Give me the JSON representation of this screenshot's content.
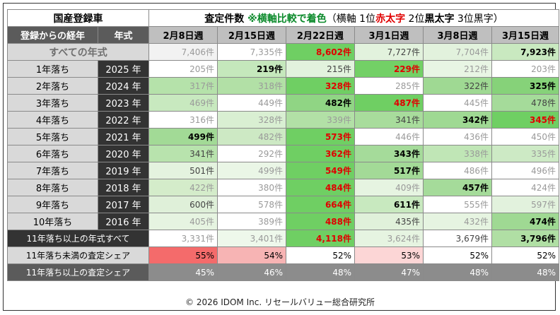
{
  "header": {
    "left_title": "国産登録車",
    "title_main": "査定件数",
    "title_green": "※横軸比較で着色",
    "title_note_a": "（横軸 1位",
    "title_red": "赤太字",
    "title_note_b": " 2位",
    "title_blk": "黒太字",
    "title_note_c": " 3位黒字）"
  },
  "columns": {
    "age_header": "登録からの経年",
    "year_header": "年式",
    "weeks": [
      "2月8日週",
      "2月15日週",
      "2月22日週",
      "3月1日週",
      "3月8日週",
      "3月15日週"
    ]
  },
  "all_row": {
    "label": "すべての年式",
    "cells": [
      {
        "text": "7,406件",
        "style": "gray",
        "bg": "#f2f2f2"
      },
      {
        "text": "7,335件",
        "style": "gray",
        "bg": "#ffffff"
      },
      {
        "text": "8,602件",
        "style": "red",
        "bg": "#6fcf63"
      },
      {
        "text": "7,727件",
        "style": "black",
        "bg": "#e2f2dd"
      },
      {
        "text": "7,704件",
        "style": "gray",
        "bg": "#e2f2dd"
      },
      {
        "text": "7,923件",
        "style": "bold",
        "bg": "#c9e9c0"
      }
    ]
  },
  "rows": [
    {
      "age": "1年落ち",
      "year": "2025 年",
      "cells": [
        {
          "text": "205件",
          "style": "gray",
          "bg": "#ffffff"
        },
        {
          "text": "219件",
          "style": "bold",
          "bg": "#c5e8bc"
        },
        {
          "text": "215件",
          "style": "black",
          "bg": "#e2f2dd"
        },
        {
          "text": "229件",
          "style": "red",
          "bg": "#73d066"
        },
        {
          "text": "212件",
          "style": "gray",
          "bg": "#e8f5e4"
        },
        {
          "text": "203件",
          "style": "gray",
          "bg": "#ffffff"
        }
      ]
    },
    {
      "age": "2年落ち",
      "year": "2024 年",
      "cells": [
        {
          "text": "317件",
          "style": "gray",
          "bg": "#b5e2aa"
        },
        {
          "text": "318件",
          "style": "gray",
          "bg": "#b2e0a6"
        },
        {
          "text": "328件",
          "style": "red",
          "bg": "#6fcf63"
        },
        {
          "text": "285件",
          "style": "gray",
          "bg": "#ffffff"
        },
        {
          "text": "322件",
          "style": "black",
          "bg": "#9fd993"
        },
        {
          "text": "325件",
          "style": "bold",
          "bg": "#86d279"
        }
      ]
    },
    {
      "age": "3年落ち",
      "year": "2023 年",
      "cells": [
        {
          "text": "469件",
          "style": "gray",
          "bg": "#c8e9bf"
        },
        {
          "text": "449件",
          "style": "gray",
          "bg": "#ffffff"
        },
        {
          "text": "482件",
          "style": "bold",
          "bg": "#90d584"
        },
        {
          "text": "487件",
          "style": "red",
          "bg": "#6fcf63"
        },
        {
          "text": "445件",
          "style": "gray",
          "bg": "#ffffff"
        },
        {
          "text": "478件",
          "style": "black",
          "bg": "#a5db9a"
        }
      ]
    },
    {
      "age": "4年落ち",
      "year": "2022 年",
      "cells": [
        {
          "text": "316件",
          "style": "gray",
          "bg": "#ffffff"
        },
        {
          "text": "328件",
          "style": "gray",
          "bg": "#d9efd2"
        },
        {
          "text": "339件",
          "style": "gray",
          "bg": "#b2e0a6"
        },
        {
          "text": "341件",
          "style": "black",
          "bg": "#a8dc9c"
        },
        {
          "text": "342件",
          "style": "bold",
          "bg": "#9fd993"
        },
        {
          "text": "345件",
          "style": "red",
          "bg": "#6fcf63"
        }
      ]
    },
    {
      "age": "5年落ち",
      "year": "2021 年",
      "cells": [
        {
          "text": "499件",
          "style": "bold",
          "bg": "#a2da96"
        },
        {
          "text": "482件",
          "style": "gray",
          "bg": "#cde9c4"
        },
        {
          "text": "573件",
          "style": "red",
          "bg": "#6fcf63"
        },
        {
          "text": "446件",
          "style": "gray",
          "bg": "#ffffff"
        },
        {
          "text": "436件",
          "style": "gray",
          "bg": "#ffffff"
        },
        {
          "text": "450件",
          "style": "gray",
          "bg": "#ffffff"
        }
      ]
    },
    {
      "age": "6年落ち",
      "year": "2020 年",
      "cells": [
        {
          "text": "341件",
          "style": "black",
          "bg": "#b8e3ad"
        },
        {
          "text": "292件",
          "style": "gray",
          "bg": "#ffffff"
        },
        {
          "text": "362件",
          "style": "red",
          "bg": "#6fcf63"
        },
        {
          "text": "343件",
          "style": "bold",
          "bg": "#a5db9a"
        },
        {
          "text": "338件",
          "style": "gray",
          "bg": "#c0e6b6"
        },
        {
          "text": "335件",
          "style": "gray",
          "bg": "#cdeac5"
        }
      ]
    },
    {
      "age": "7年落ち",
      "year": "2019 年",
      "cells": [
        {
          "text": "501件",
          "style": "black",
          "bg": "#e4f3df"
        },
        {
          "text": "499件",
          "style": "gray",
          "bg": "#eaf6e6"
        },
        {
          "text": "549件",
          "style": "red",
          "bg": "#6fcf63"
        },
        {
          "text": "517件",
          "style": "bold",
          "bg": "#a3da97"
        },
        {
          "text": "486件",
          "style": "gray",
          "bg": "#ffffff"
        },
        {
          "text": "496件",
          "style": "gray",
          "bg": "#ffffff"
        }
      ]
    },
    {
      "age": "8年落ち",
      "year": "2018 年",
      "cells": [
        {
          "text": "422件",
          "style": "gray",
          "bg": "#d4ecca"
        },
        {
          "text": "380件",
          "style": "gray",
          "bg": "#ffffff"
        },
        {
          "text": "484件",
          "style": "red",
          "bg": "#6fcf63"
        },
        {
          "text": "409件",
          "style": "gray",
          "bg": "#e6f4e1"
        },
        {
          "text": "457件",
          "style": "bold",
          "bg": "#a5db9a"
        },
        {
          "text": "424件",
          "style": "gray",
          "bg": "#ffffff"
        }
      ]
    },
    {
      "age": "9年落ち",
      "year": "2017 年",
      "cells": [
        {
          "text": "600件",
          "style": "black",
          "bg": "#dff0d9"
        },
        {
          "text": "578件",
          "style": "gray",
          "bg": "#ffffff"
        },
        {
          "text": "664件",
          "style": "red",
          "bg": "#6fcf63"
        },
        {
          "text": "611件",
          "style": "bold",
          "bg": "#c8e9bf"
        },
        {
          "text": "555件",
          "style": "gray",
          "bg": "#ffffff"
        },
        {
          "text": "597件",
          "style": "gray",
          "bg": "#e2f2dd"
        }
      ]
    },
    {
      "age": "10年落ち",
      "year": "2016 年",
      "cells": [
        {
          "text": "405件",
          "style": "gray",
          "bg": "#e6f4e1"
        },
        {
          "text": "389件",
          "style": "gray",
          "bg": "#ffffff"
        },
        {
          "text": "488件",
          "style": "red",
          "bg": "#6fcf63"
        },
        {
          "text": "435件",
          "style": "black",
          "bg": "#e0f1da"
        },
        {
          "text": "432件",
          "style": "gray",
          "bg": "#e6f4e1"
        },
        {
          "text": "474件",
          "style": "bold",
          "bg": "#9fd993"
        }
      ]
    }
  ],
  "sum_row": {
    "label": "11年落ち以上の年式すべて",
    "cells": [
      {
        "text": "3,331件",
        "style": "gray",
        "bg": "#ffffff"
      },
      {
        "text": "3,401件",
        "style": "gray",
        "bg": "#eef8eb"
      },
      {
        "text": "4,118件",
        "style": "red",
        "bg": "#6fcf63"
      },
      {
        "text": "3,624件",
        "style": "gray",
        "bg": "#e6f4e1"
      },
      {
        "text": "3,679件",
        "style": "black",
        "bg": "#ffffff"
      },
      {
        "text": "3,796件",
        "style": "bold",
        "bg": "#b0dfa4"
      }
    ]
  },
  "share_under": {
    "label": "11年落ち未満の査定シェア",
    "cells": [
      {
        "text": "55%",
        "bg": "#f46b6b"
      },
      {
        "text": "54%",
        "bg": "#f7b4b4"
      },
      {
        "text": "52%",
        "bg": "#ffffff"
      },
      {
        "text": "53%",
        "bg": "#fcd6d6"
      },
      {
        "text": "52%",
        "bg": "#ffffff"
      },
      {
        "text": "52%",
        "bg": "#ffffff"
      }
    ]
  },
  "share_over": {
    "label": "11年落ち以上の査定シェア",
    "cells": [
      "45%",
      "46%",
      "48%",
      "47%",
      "48%",
      "48%"
    ]
  },
  "footer": "© 2026 IDOM Inc. リセールバリュー総合研究所"
}
